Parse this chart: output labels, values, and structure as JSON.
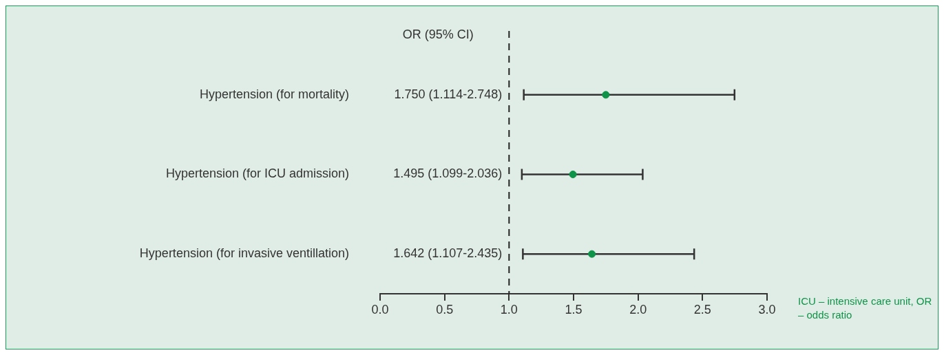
{
  "chart_data": {
    "type": "scatter",
    "orientation": "horizontal",
    "categories": [
      "Hypertension (for mortality)",
      "Hypertension (for ICU admission)",
      "Hypertension (for invasive ventillation)"
    ],
    "series": [
      {
        "color": "#0e9448",
        "values": [
          1.75,
          1.495,
          1.642
        ],
        "errors": [
          [
            1.114,
            2.748
          ],
          [
            1.099,
            2.036
          ],
          [
            1.107,
            2.435
          ]
        ]
      }
    ],
    "xlim": [
      0,
      3
    ],
    "xticks": [
      {
        "value": 0,
        "label": "0.0"
      },
      {
        "value": 0.5,
        "label": "0.5"
      },
      {
        "value": 1,
        "label": "1.0"
      },
      {
        "value": 1.5,
        "label": "1.5"
      },
      {
        "value": 2,
        "label": "2.0"
      },
      {
        "value": 2.5,
        "label": "2.5"
      },
      {
        "value": 3,
        "label": "3.0"
      }
    ],
    "ref_lines": [
      {
        "axis": "x",
        "value": 1,
        "line_style": "dashed",
        "color": "#222222"
      }
    ],
    "annotations": [
      "OR (95% CI)",
      "1.750 (1.114-2.748)",
      "1.495 (1.099-2.036)",
      "1.642 (1.107-2.435)",
      "ICU – intensive care unit, OR – odds ratio"
    ],
    "marker": "circle",
    "legend": false
  }
}
